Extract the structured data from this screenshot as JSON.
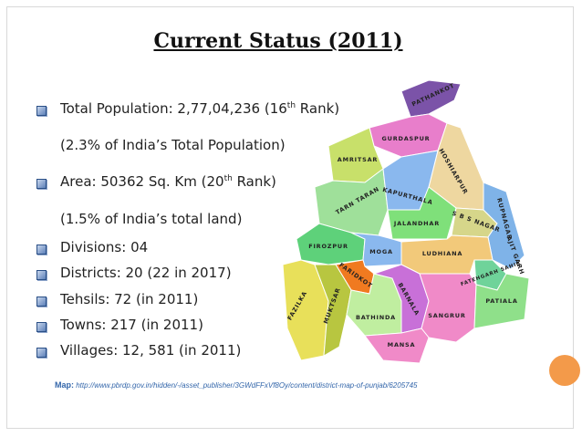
{
  "title": "Current Status (2011)",
  "items": [
    {
      "text": "Total Population: 2,77,04,236 (16",
      "sup": "th",
      "tail": " Rank)"
    },
    {
      "text": "(2.3% of India’s Total Population)"
    },
    {
      "text": "Area: 50362 Sq. Km (20",
      "sup": "th",
      "tail": " Rank)"
    },
    {
      "text": "(1.5% of India’s total land)"
    },
    {
      "text": "Divisions: 04"
    },
    {
      "text": "Districts: 20 (22 in 2017)"
    },
    {
      "text": "Tehsils: 72 (in 2011)"
    },
    {
      "text": "Towns: 217 (in 2011)"
    },
    {
      "text": "Villages: 12, 581 (in 2011)"
    }
  ],
  "map": {
    "labels": [
      "PATHANKOT",
      "GURDASPUR",
      "AMRITSAR",
      "HOSHIARPUR",
      "TARN TARAN",
      "KAPURTHALA",
      "JALANDHAR",
      "S B S NAGAR",
      "RUPNAGAR",
      "AJIT GARH",
      "FATEHGARH SAHIB",
      "FIROZPUR",
      "MOGA",
      "LUDHIANA",
      "FARIDKOT",
      "FAZILKA",
      "MUKTSAR",
      "BATHINDA",
      "BARNALA",
      "SANGRUR",
      "PATIALA",
      "MANSA"
    ]
  },
  "source": {
    "label": "Map:",
    "url": "http://www.pbrdp.gov.in/hidden/-/asset_publisher/3GWdFFxVf8Oy/content/district-map-of-punjab/6205745"
  }
}
